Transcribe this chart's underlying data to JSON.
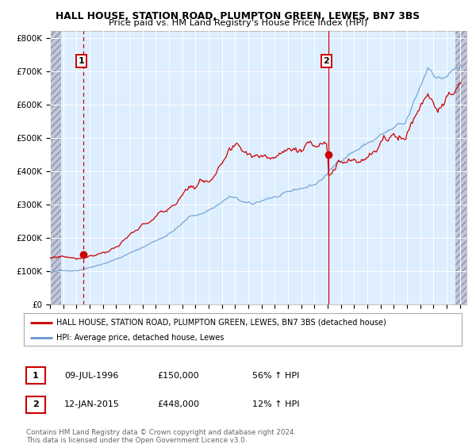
{
  "title1": "HALL HOUSE, STATION ROAD, PLUMPTON GREEN, LEWES, BN7 3BS",
  "title2": "Price paid vs. HM Land Registry's House Price Index (HPI)",
  "legend1": "HALL HOUSE, STATION ROAD, PLUMPTON GREEN, LEWES, BN7 3BS (detached house)",
  "legend2": "HPI: Average price, detached house, Lewes",
  "purchase1_date": "09-JUL-1996",
  "purchase1_price": "£150,000",
  "purchase1_hpi": "56% ↑ HPI",
  "purchase1_year": 1996.53,
  "purchase1_value": 150000,
  "purchase2_date": "12-JAN-2015",
  "purchase2_price": "£448,000",
  "purchase2_hpi": "12% ↑ HPI",
  "purchase2_year": 2015.04,
  "purchase2_value": 448000,
  "red_color": "#cc0000",
  "blue_color": "#6699cc",
  "bg_color": "#ddeeff",
  "footnote": "Contains HM Land Registry data © Crown copyright and database right 2024.\nThis data is licensed under the Open Government Licence v3.0.",
  "ylim": [
    0,
    820000
  ],
  "yticks": [
    0,
    100000,
    200000,
    300000,
    400000,
    500000,
    600000,
    700000,
    800000
  ],
  "ytick_labels": [
    "£0",
    "£100K",
    "£200K",
    "£300K",
    "£400K",
    "£500K",
    "£600K",
    "£700K",
    "£800K"
  ],
  "xlim_start": 1994.0,
  "xlim_end": 2025.5,
  "xtick_years": [
    1994,
    1995,
    1996,
    1997,
    1998,
    1999,
    2000,
    2001,
    2002,
    2003,
    2004,
    2005,
    2006,
    2007,
    2008,
    2009,
    2010,
    2011,
    2012,
    2013,
    2014,
    2015,
    2016,
    2017,
    2018,
    2019,
    2020,
    2021,
    2022,
    2023,
    2024,
    2025
  ]
}
